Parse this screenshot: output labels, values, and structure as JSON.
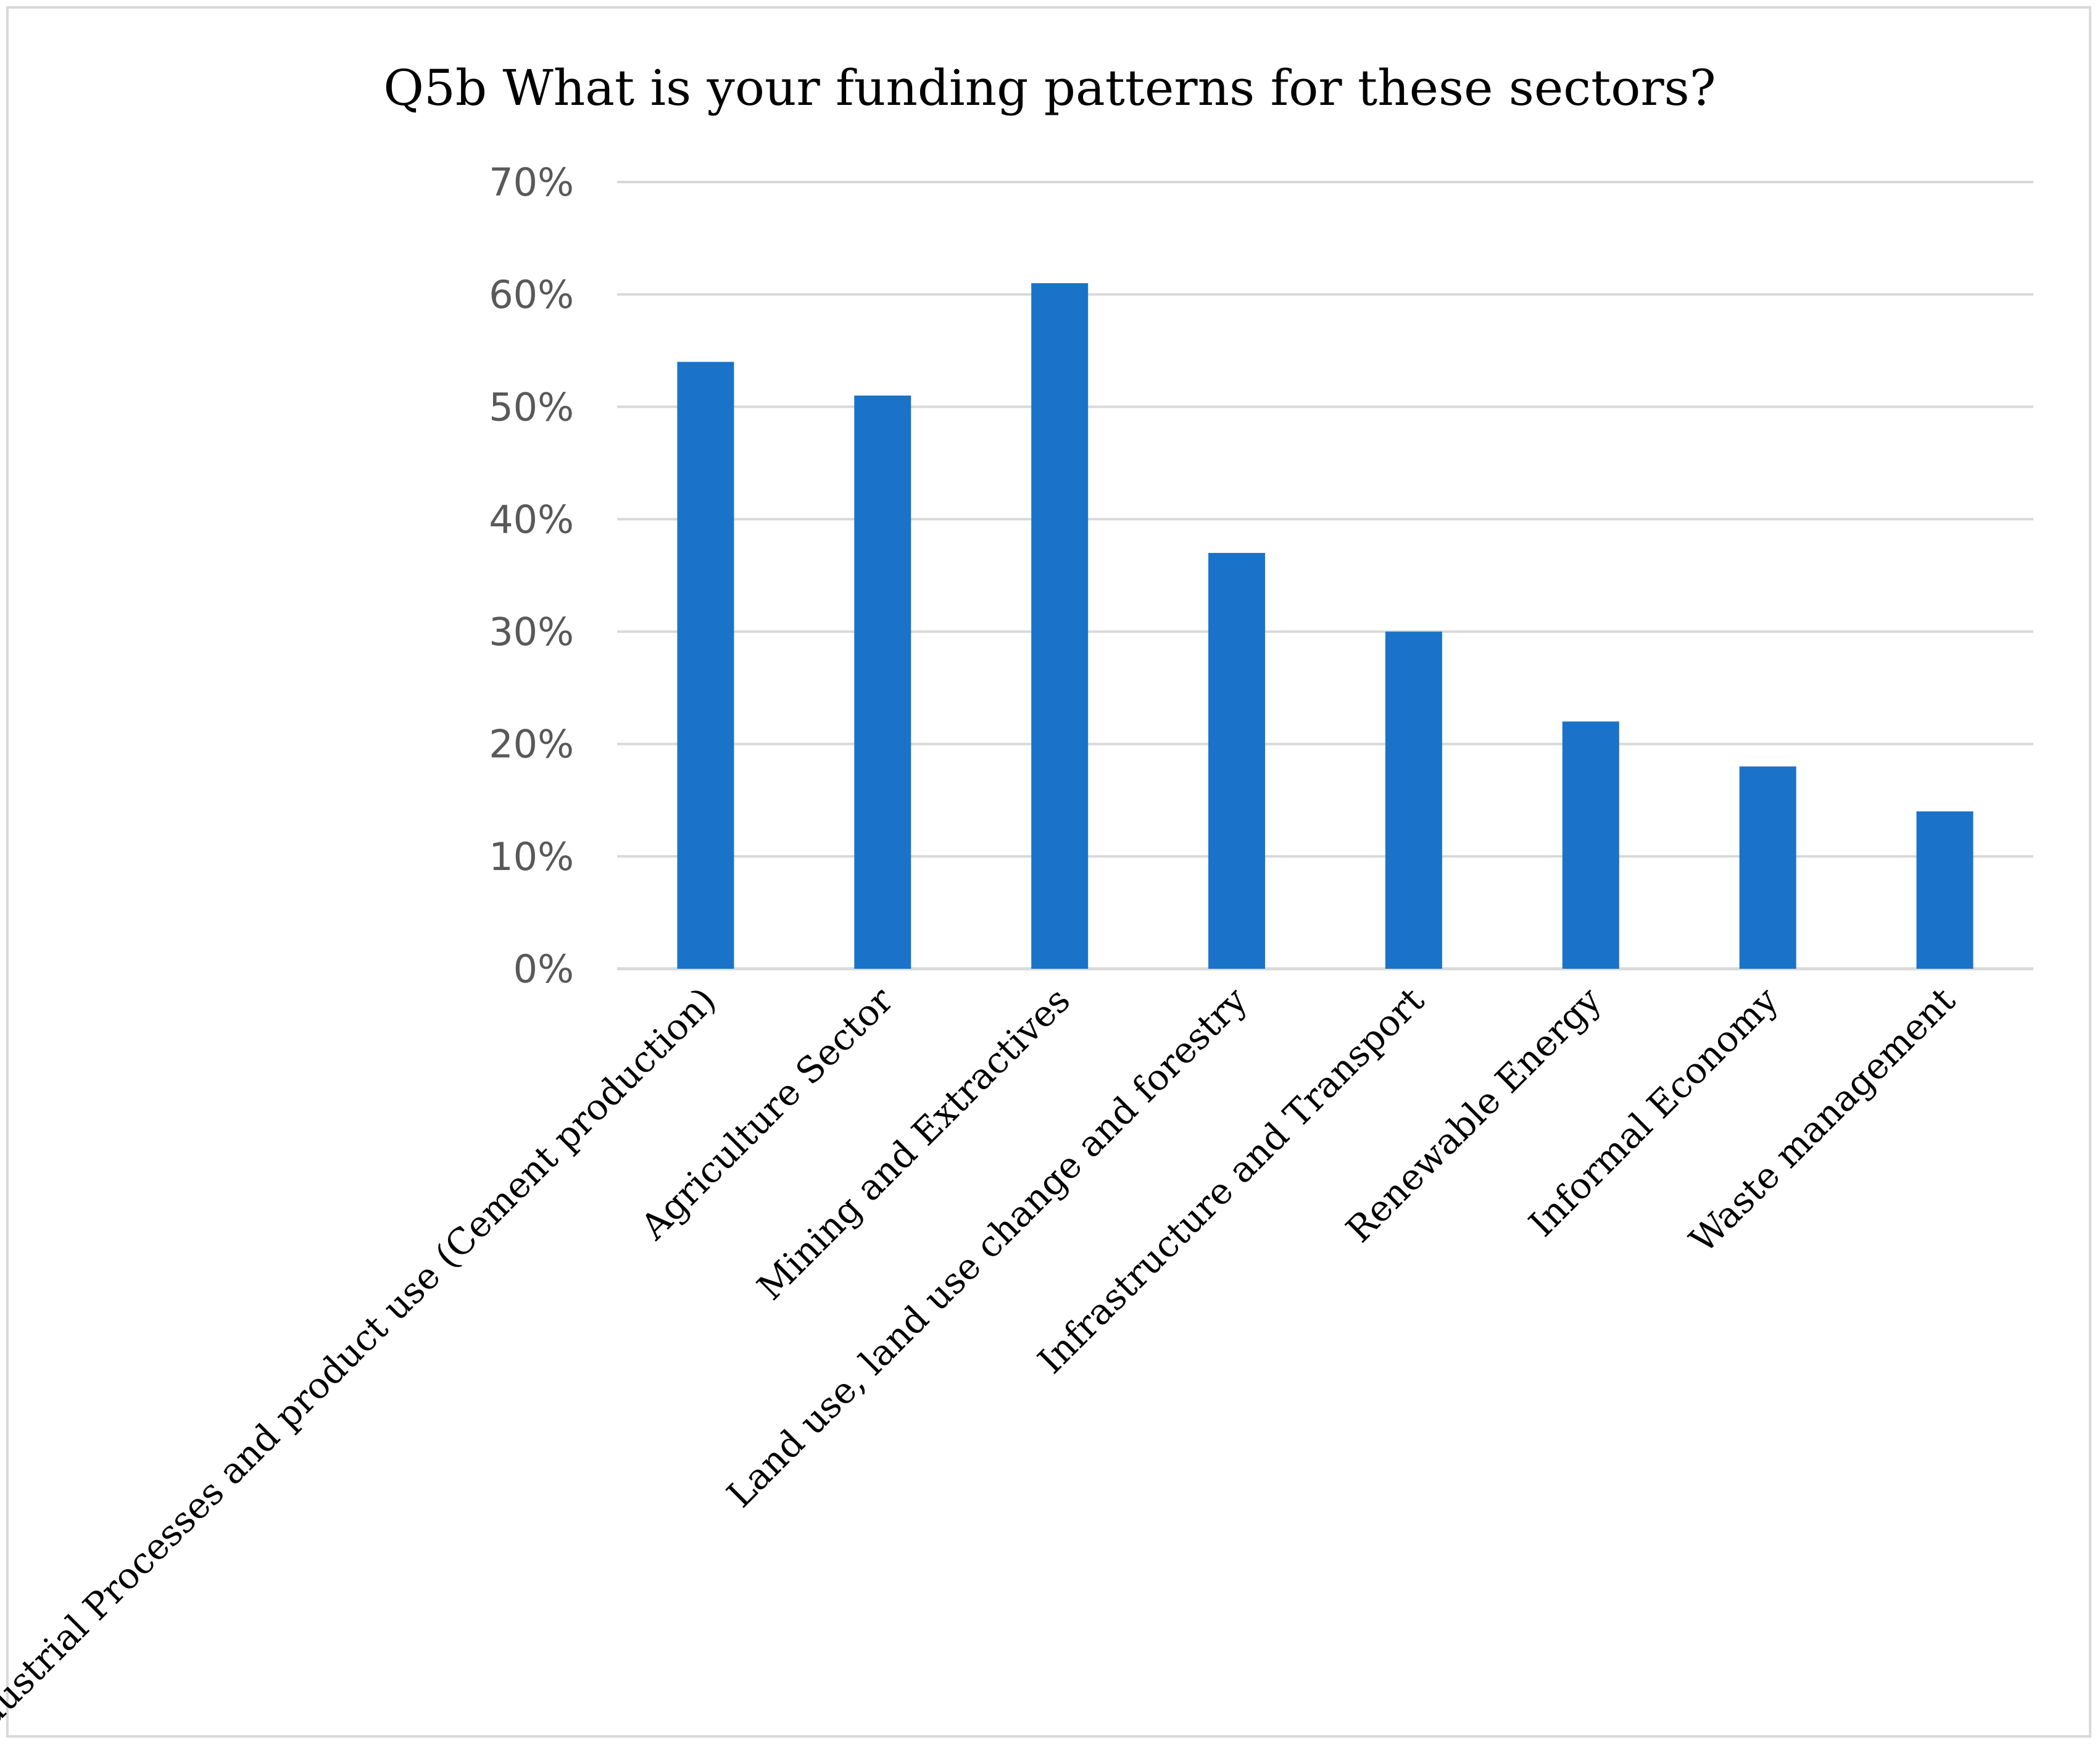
{
  "chart_data": {
    "type": "bar",
    "title": "Q5b What is your  funding patterns for these sectors?",
    "categories": [
      "Industrial Processes and product use (Cement production)",
      "Agriculture Sector",
      "Mining and Extractives",
      "Land use, land use change and forestry",
      "Infrastructure and Transport",
      "Renewable Energy",
      "Informal Economy",
      "Waste management"
    ],
    "values": [
      0.54,
      0.51,
      0.61,
      0.37,
      0.3,
      0.22,
      0.18,
      0.14
    ],
    "ylim": [
      0,
      0.7
    ],
    "yticks": [
      0,
      0.1,
      0.2,
      0.3,
      0.4,
      0.5,
      0.6,
      0.7
    ],
    "ytick_labels": [
      "0%",
      "10%",
      "20%",
      "30%",
      "40%",
      "50%",
      "60%",
      "70%"
    ],
    "xlabel": "",
    "ylabel": "",
    "grid": true,
    "legend": "none",
    "bar_color": "#1a73c8",
    "grid_color": "#d9d9d9"
  }
}
